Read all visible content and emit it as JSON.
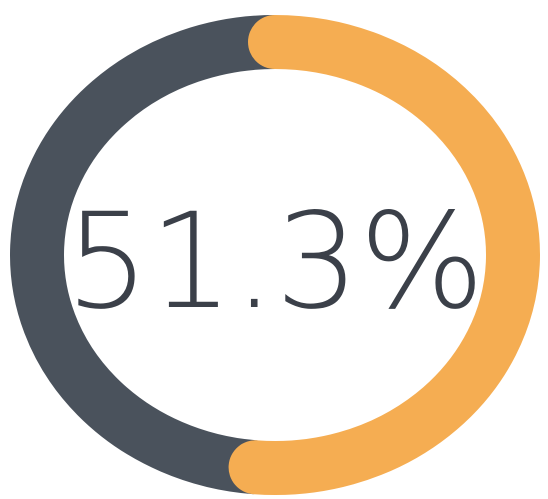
{
  "chart_data": {
    "type": "donut",
    "values": [
      51.3,
      48.7
    ],
    "value_labels": [
      "51.3%",
      null
    ],
    "colors": [
      "#f5ad52",
      "#4a525c"
    ]
  }
}
